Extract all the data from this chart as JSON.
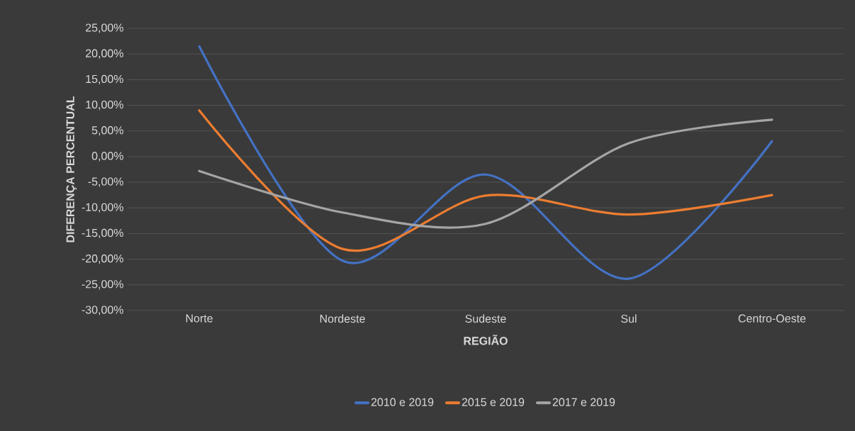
{
  "chart_data": {
    "type": "line",
    "xlabel": "REGIÃO",
    "ylabel": "DIFERENÇA PERCENTUAL",
    "categories": [
      "Norte",
      "Nordeste",
      "Sudeste",
      "Sul",
      "Centro-Oeste"
    ],
    "series": [
      {
        "name": "2010 e 2019",
        "color": "#4472c4",
        "values": [
          21.5,
          -20.3,
          -3.5,
          -23.8,
          3.0
        ]
      },
      {
        "name": "2015 e 2019",
        "color": "#ed7d31",
        "values": [
          9.0,
          -18.0,
          -7.6,
          -11.3,
          -7.5
        ]
      },
      {
        "name": "2017 e 2019",
        "color": "#a5a5a5",
        "values": [
          -2.8,
          -10.9,
          -13.1,
          2.6,
          7.2
        ]
      }
    ],
    "ylim": [
      -30,
      25
    ],
    "yticks": [
      {
        "value": -30,
        "label": "-30,00%"
      },
      {
        "value": -25,
        "label": "-25,00%"
      },
      {
        "value": -20,
        "label": "-20,00%"
      },
      {
        "value": -15,
        "label": "-15,00%"
      },
      {
        "value": -10,
        "label": "-10,00%"
      },
      {
        "value": -5,
        "label": "-5,00%"
      },
      {
        "value": 0,
        "label": "0,00%"
      },
      {
        "value": 5,
        "label": "5,00%"
      },
      {
        "value": 10,
        "label": "10,00%"
      },
      {
        "value": 15,
        "label": "15,00%"
      },
      {
        "value": 20,
        "label": "20,00%"
      },
      {
        "value": 25,
        "label": "25,00%"
      }
    ],
    "grid": "y",
    "legend": "bottom",
    "line_style": "solid"
  }
}
